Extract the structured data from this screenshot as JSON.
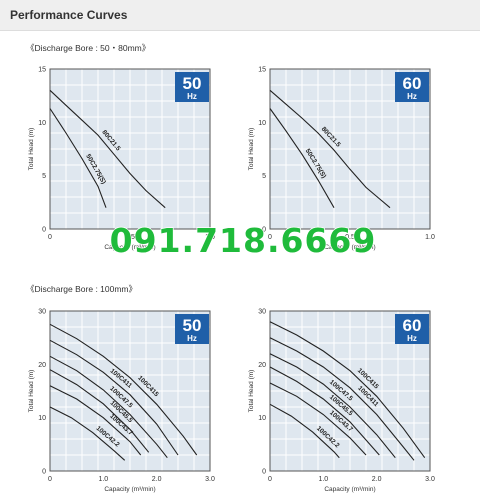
{
  "page": {
    "title": "Performance Curves",
    "watermark": "091.718.6669"
  },
  "sections": [
    {
      "label": "《Discharge Bore : 50・80mm》"
    },
    {
      "label": "《Discharge Bore : 100mm》"
    }
  ],
  "colors": {
    "grid_bg": "#dfe7ef",
    "grid_line": "#ffffff",
    "frame": "#555555",
    "curve": "#222222",
    "badge": "#1f5fa8",
    "watermark": "#1fbb3b"
  },
  "chart_data": [
    {
      "id": "chart-50a",
      "type": "line",
      "badge": {
        "value": "50",
        "unit": "Hz"
      },
      "xlabel": "Capacity (m³/min)",
      "ylabel": "Total Head (m)",
      "xlim": [
        0,
        1.0
      ],
      "ylim": [
        0,
        15
      ],
      "xticks": [
        "0",
        "0.5",
        "1.0"
      ],
      "yticks": [
        "0",
        "5",
        "10",
        "15"
      ],
      "grid": true,
      "series": [
        {
          "name": "80C21.5",
          "x": [
            0,
            0.1,
            0.2,
            0.3,
            0.4,
            0.5,
            0.6,
            0.72
          ],
          "y": [
            13.0,
            11.6,
            10.2,
            8.8,
            7.0,
            5.2,
            3.6,
            2.0
          ]
        },
        {
          "name": "50C2.75(S)",
          "x": [
            0,
            0.1,
            0.2,
            0.3,
            0.35
          ],
          "y": [
            11.3,
            9.0,
            6.6,
            4.0,
            2.0
          ]
        }
      ]
    },
    {
      "id": "chart-60a",
      "type": "line",
      "badge": {
        "value": "60",
        "unit": "Hz"
      },
      "xlabel": "Capacity (m³/min)",
      "ylabel": "Total Head (m)",
      "xlim": [
        0,
        1.0
      ],
      "ylim": [
        0,
        15
      ],
      "xticks": [
        "0",
        "0.5",
        "1.0"
      ],
      "yticks": [
        "0",
        "5",
        "10",
        "15"
      ],
      "grid": true,
      "series": [
        {
          "name": "80C21.5",
          "x": [
            0,
            0.1,
            0.2,
            0.3,
            0.4,
            0.5,
            0.6,
            0.75
          ],
          "y": [
            13.0,
            11.7,
            10.4,
            9.0,
            7.4,
            5.6,
            3.9,
            2.0
          ]
        },
        {
          "name": "50C2.75(S)",
          "x": [
            0,
            0.1,
            0.2,
            0.3,
            0.4
          ],
          "y": [
            11.3,
            9.2,
            7.0,
            4.6,
            2.0
          ]
        }
      ]
    },
    {
      "id": "chart-50b",
      "type": "line",
      "badge": {
        "value": "50",
        "unit": "Hz"
      },
      "xlabel": "Capacity (m³/min)",
      "ylabel": "Total Head (m)",
      "xlim": [
        0,
        3.0
      ],
      "ylim": [
        0,
        30
      ],
      "xticks": [
        "0",
        "1.0",
        "2.0",
        "3.0"
      ],
      "yticks": [
        "0",
        "10",
        "20",
        "30"
      ],
      "grid": true,
      "series": [
        {
          "name": "100C415",
          "x": [
            0,
            0.5,
            1.0,
            1.5,
            2.0,
            2.5,
            2.75
          ],
          "y": [
            27.5,
            24.8,
            21.5,
            17.5,
            12.5,
            6.5,
            3.0
          ]
        },
        {
          "name": "100C411",
          "x": [
            0,
            0.5,
            1.0,
            1.5,
            2.0,
            2.4
          ],
          "y": [
            24.5,
            21.8,
            18.5,
            14.3,
            8.8,
            3.0
          ]
        },
        {
          "name": "100C47.5",
          "x": [
            0,
            0.5,
            1.0,
            1.5,
            2.0,
            2.2
          ],
          "y": [
            21.5,
            18.8,
            15.2,
            10.6,
            5.0,
            2.5
          ]
        },
        {
          "name": "100C45.5",
          "x": [
            0,
            0.5,
            1.0,
            1.5,
            1.85
          ],
          "y": [
            19.0,
            16.2,
            12.6,
            7.8,
            3.5
          ]
        },
        {
          "name": "100C43.7",
          "x": [
            0,
            0.5,
            1.0,
            1.5,
            1.7
          ],
          "y": [
            16.0,
            13.5,
            10.0,
            5.5,
            3.0
          ]
        },
        {
          "name": "100C42.2",
          "x": [
            0,
            0.4,
            0.8,
            1.2,
            1.4
          ],
          "y": [
            12.0,
            10.0,
            7.2,
            3.8,
            2.0
          ]
        }
      ]
    },
    {
      "id": "chart-60b",
      "type": "line",
      "badge": {
        "value": "60",
        "unit": "Hz"
      },
      "xlabel": "Capacity (m³/min)",
      "ylabel": "Total Head (m)",
      "xlim": [
        0,
        3.0
      ],
      "ylim": [
        0,
        30
      ],
      "xticks": [
        "0",
        "1.0",
        "2.0",
        "3.0"
      ],
      "yticks": [
        "0",
        "10",
        "20",
        "30"
      ],
      "grid": true,
      "series": [
        {
          "name": "100C415",
          "x": [
            0,
            0.5,
            1.0,
            1.5,
            2.0,
            2.5,
            2.9
          ],
          "y": [
            28.0,
            25.5,
            22.5,
            18.8,
            14.0,
            8.0,
            2.5
          ]
        },
        {
          "name": "100C411",
          "x": [
            0,
            0.5,
            1.0,
            1.5,
            2.0,
            2.5,
            2.7
          ],
          "y": [
            25.0,
            22.5,
            19.5,
            15.6,
            10.6,
            4.5,
            2.0
          ]
        },
        {
          "name": "100C47.5",
          "x": [
            0,
            0.5,
            1.0,
            1.5,
            2.0,
            2.35
          ],
          "y": [
            22.0,
            19.5,
            16.3,
            12.0,
            6.8,
            2.5
          ]
        },
        {
          "name": "100C45.5",
          "x": [
            0,
            0.5,
            1.0,
            1.5,
            2.05
          ],
          "y": [
            19.5,
            16.8,
            13.5,
            9.2,
            3.0
          ]
        },
        {
          "name": "100C43.7",
          "x": [
            0,
            0.5,
            1.0,
            1.5,
            1.8
          ],
          "y": [
            16.5,
            14.0,
            10.6,
            6.2,
            3.0
          ]
        },
        {
          "name": "100C42.2",
          "x": [
            0,
            0.4,
            0.8,
            1.2,
            1.3
          ],
          "y": [
            12.5,
            10.3,
            7.3,
            3.6,
            2.5
          ]
        }
      ]
    }
  ]
}
